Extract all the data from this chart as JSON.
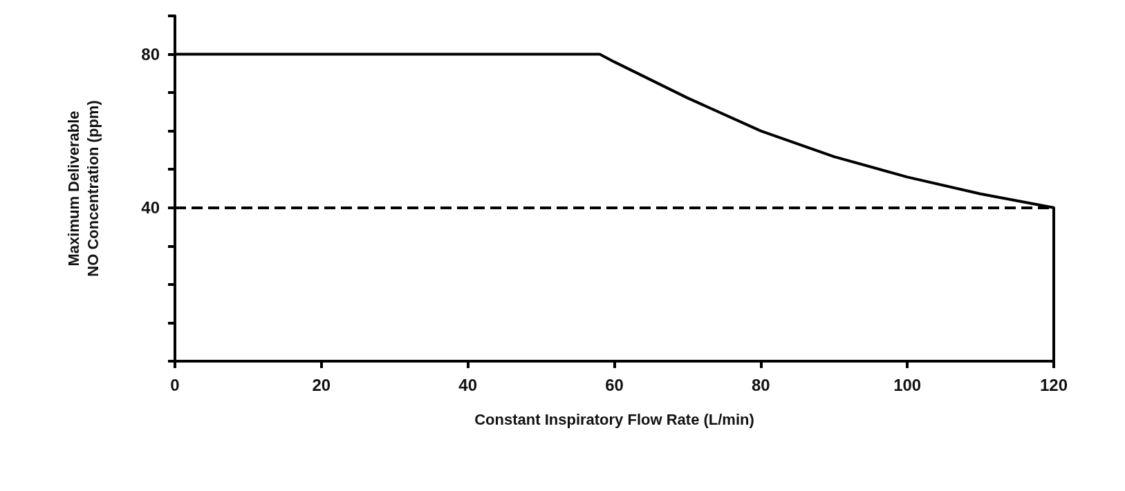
{
  "chart_data": {
    "type": "line",
    "xlabel": "Constant Inspiratory Flow Rate (L/min)",
    "ylabel": "Maximum Deliverable\nNO Concentration (ppm)",
    "x": [
      0,
      58,
      60,
      70,
      80,
      90,
      100,
      110,
      120,
      120
    ],
    "series": [
      {
        "color": "#000000",
        "values": [
          80,
          80,
          78,
          68.6,
          60,
          53.3,
          48,
          43.6,
          40,
          0
        ]
      }
    ],
    "xlim": [
      0,
      120
    ],
    "xticks": [
      0,
      20,
      40,
      60,
      80,
      100,
      120
    ],
    "ylim": [
      0,
      90
    ],
    "yticks": [
      {
        "value": 0,
        "label": null
      },
      {
        "value": 10,
        "label": null
      },
      {
        "value": 20,
        "label": null
      },
      {
        "value": 30,
        "label": null
      },
      40,
      {
        "value": 50,
        "label": null
      },
      {
        "value": 60,
        "label": null
      },
      {
        "value": 70,
        "label": null
      },
      80,
      {
        "value": 90,
        "label": null
      }
    ],
    "ref_lines": [
      {
        "axis": "y",
        "value": 40,
        "color": "#000000",
        "line_style": "dashed"
      }
    ],
    "tick_labels": "xy",
    "grid": false,
    "marker": "none",
    "line_style": "solid"
  }
}
